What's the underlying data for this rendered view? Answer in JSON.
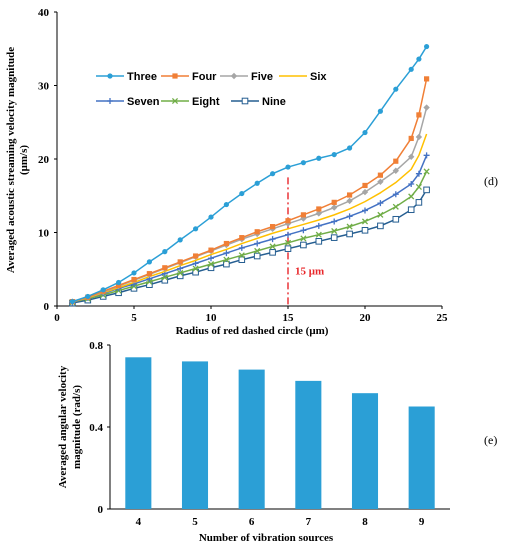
{
  "chart_data": [
    {
      "type": "line",
      "panel_label": "(d)",
      "xlabel": "Radius of red dashed circle (μm)",
      "ylabel_lines": [
        "Averaged acoustic streaming velocity magnitude",
        "(μm/s)"
      ],
      "xlim": [
        0,
        25
      ],
      "ylim": [
        0,
        40
      ],
      "xticks": [
        "0",
        "5",
        "10",
        "15",
        "20",
        "25"
      ],
      "yticks": [
        "0",
        "10",
        "20",
        "30",
        "40"
      ],
      "grid": false,
      "legend_placement": "top-left",
      "x": [
        1,
        2,
        3,
        4,
        5,
        6,
        7,
        8,
        9,
        10,
        11,
        12,
        13,
        14,
        15,
        16,
        17,
        18,
        19,
        20,
        21,
        22,
        23,
        23.5,
        24
      ],
      "series": [
        {
          "name": "Three",
          "color": "#2b9fd6",
          "marker": "circle",
          "values": [
            0.6,
            1.3,
            2.2,
            3.2,
            4.5,
            6.0,
            7.4,
            9.0,
            10.5,
            12.1,
            13.8,
            15.3,
            16.7,
            18.0,
            18.9,
            19.5,
            20.1,
            20.6,
            21.5,
            23.6,
            26.5,
            29.5,
            32.2,
            33.6,
            35.3
          ]
        },
        {
          "name": "Four",
          "color": "#f07f36",
          "marker": "square-filled",
          "values": [
            0.6,
            1.2,
            2.0,
            2.8,
            3.6,
            4.4,
            5.2,
            6.0,
            6.8,
            7.6,
            8.5,
            9.3,
            10.1,
            10.8,
            11.6,
            12.4,
            13.2,
            14.1,
            15.1,
            16.4,
            17.8,
            19.7,
            22.8,
            26.0,
            30.9
          ]
        },
        {
          "name": "Five",
          "color": "#a6a6a6",
          "marker": "diamond",
          "values": [
            0.6,
            1.2,
            1.9,
            2.7,
            3.5,
            4.3,
            5.1,
            5.9,
            6.7,
            7.5,
            8.3,
            9.1,
            9.8,
            10.5,
            11.2,
            11.9,
            12.6,
            13.4,
            14.3,
            15.5,
            16.9,
            18.4,
            20.3,
            23.0,
            27.0
          ]
        },
        {
          "name": "Six",
          "color": "#ffc000",
          "marker": "none",
          "values": [
            0.6,
            1.1,
            1.8,
            2.5,
            3.2,
            4.0,
            4.7,
            5.5,
            6.2,
            7.0,
            7.7,
            8.5,
            9.2,
            9.9,
            10.5,
            11.1,
            11.7,
            12.4,
            13.2,
            14.2,
            15.4,
            16.8,
            18.6,
            20.5,
            23.4
          ]
        },
        {
          "name": "Seven",
          "color": "#4472c4",
          "marker": "plus",
          "values": [
            0.5,
            1.1,
            1.7,
            2.4,
            3.0,
            3.7,
            4.4,
            5.1,
            5.8,
            6.5,
            7.2,
            7.9,
            8.5,
            9.1,
            9.7,
            10.3,
            10.9,
            11.5,
            12.2,
            13.0,
            14.0,
            15.2,
            16.6,
            18.0,
            20.5
          ]
        },
        {
          "name": "Eight",
          "color": "#70ad47",
          "marker": "x",
          "values": [
            0.5,
            1.0,
            1.5,
            2.1,
            2.7,
            3.3,
            3.9,
            4.5,
            5.1,
            5.7,
            6.3,
            6.9,
            7.5,
            8.1,
            8.6,
            9.2,
            9.7,
            10.2,
            10.8,
            11.5,
            12.4,
            13.5,
            14.9,
            16.2,
            18.3
          ]
        },
        {
          "name": "Nine",
          "color": "#255e91",
          "marker": "square-open",
          "values": [
            0.4,
            0.8,
            1.3,
            1.8,
            2.4,
            2.9,
            3.5,
            4.1,
            4.6,
            5.2,
            5.7,
            6.3,
            6.8,
            7.3,
            7.8,
            8.3,
            8.8,
            9.3,
            9.8,
            10.3,
            10.9,
            11.8,
            13.1,
            14.1,
            15.8
          ]
        }
      ],
      "annotation": {
        "text": "15 μm",
        "x": 15,
        "color": "#e8262a"
      }
    },
    {
      "type": "bar",
      "panel_label": "(e)",
      "xlabel": "Number of vibration sources",
      "ylabel_lines": [
        "Averaged angular velocity",
        "magnitude (rad/s)"
      ],
      "categories": [
        "4",
        "5",
        "6",
        "7",
        "8",
        "9"
      ],
      "values": [
        0.74,
        0.72,
        0.68,
        0.625,
        0.565,
        0.5
      ],
      "ylim": [
        0,
        0.8
      ],
      "yticks": [
        "0",
        "0.4",
        "0.8"
      ],
      "color": "#2b9fd6",
      "grid": false
    }
  ]
}
